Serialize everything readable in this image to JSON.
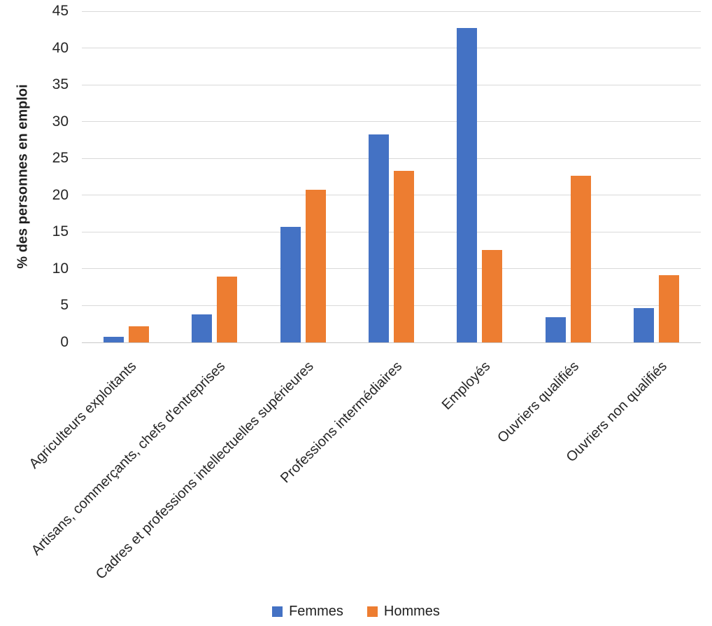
{
  "chart_data": {
    "type": "bar",
    "title": "",
    "ylabel": "% des personnes en emploi",
    "xlabel": "",
    "ylim": [
      0,
      45
    ],
    "ytick_step": 5,
    "grid": true,
    "legend_position": "bottom",
    "categories": [
      "Agriculteurs exploitants",
      "Artisans, commerçants, chefs d'entreprises",
      "Cadres et professions intellectuelles supérieures",
      "Professions intermédiaires",
      "Employés",
      "Ouvriers qualifiés",
      "Ouvriers non qualifiés"
    ],
    "series": [
      {
        "name": "Femmes",
        "color": "#4472C4",
        "values": [
          0.8,
          3.8,
          15.7,
          28.3,
          42.7,
          3.4,
          4.7
        ]
      },
      {
        "name": "Hommes",
        "color": "#ED7D31",
        "values": [
          2.2,
          8.9,
          20.7,
          23.3,
          12.6,
          22.6,
          9.1
        ]
      }
    ]
  }
}
